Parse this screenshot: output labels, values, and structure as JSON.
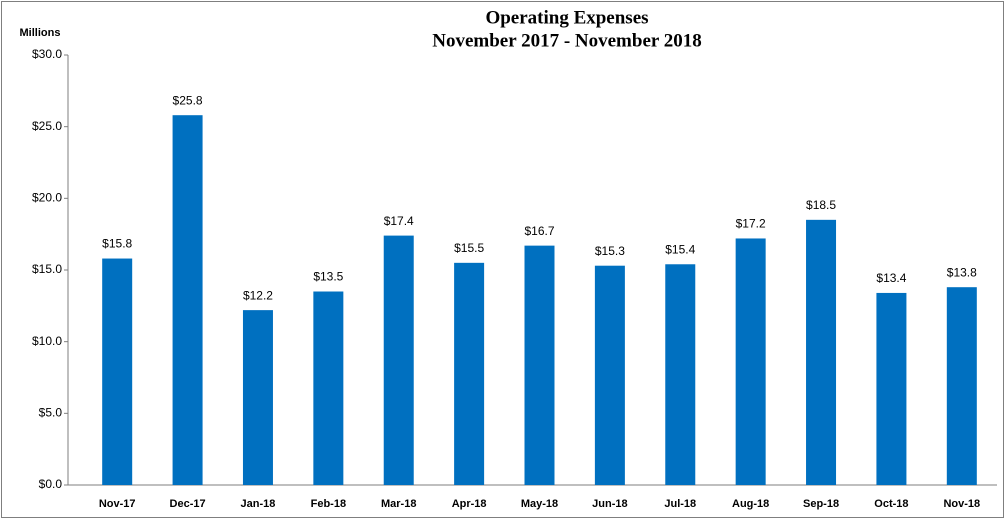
{
  "chart_data": {
    "type": "bar",
    "title": [
      "Operating Expenses",
      "November 2017 - November 2018"
    ],
    "y_label": "Millions",
    "categories": [
      "Nov-17",
      "Dec-17",
      "Jan-18",
      "Feb-18",
      "Mar-18",
      "Apr-18",
      "May-18",
      "Jun-18",
      "Jul-18",
      "Aug-18",
      "Sep-18",
      "Oct-18",
      "Nov-18"
    ],
    "values": [
      15.8,
      25.8,
      12.2,
      13.5,
      17.4,
      15.5,
      16.7,
      15.3,
      15.4,
      17.2,
      18.5,
      13.4,
      13.8
    ],
    "value_labels": [
      "$15.8",
      "$25.8",
      "$12.2",
      "$13.5",
      "$17.4",
      "$15.5",
      "$16.7",
      "$15.3",
      "$15.4",
      "$17.2",
      "$18.5",
      "$13.4",
      "$13.8"
    ],
    "color": "#0070c0",
    "ylim": [
      0,
      30
    ],
    "yticks": [
      {
        "value": 0,
        "label": "$0.0"
      },
      {
        "value": 5,
        "label": "$5.0"
      },
      {
        "value": 10,
        "label": "$10.0"
      },
      {
        "value": 15,
        "label": "$15.0"
      },
      {
        "value": 20,
        "label": "$20.0"
      },
      {
        "value": 25,
        "label": "$25.0"
      },
      {
        "value": 30,
        "label": "$30.0"
      }
    ],
    "grid": false
  }
}
